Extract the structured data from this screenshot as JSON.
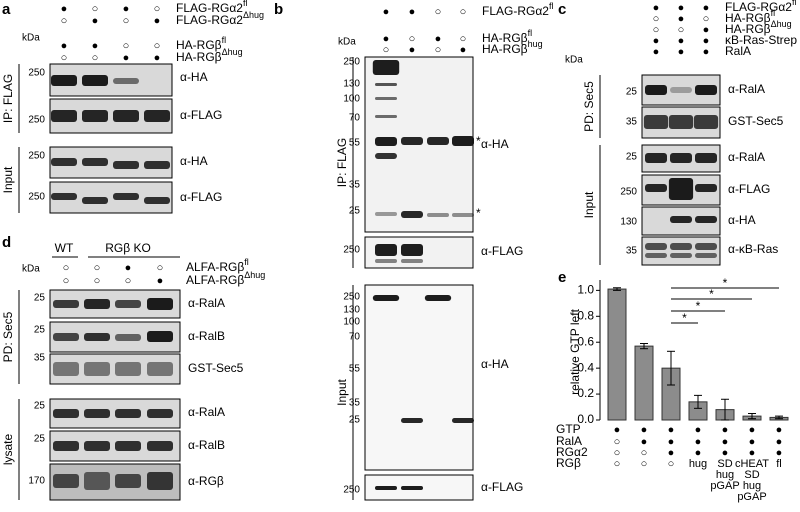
{
  "panel_a": {
    "letter": "a",
    "kda": "kDa",
    "conditions": [
      {
        "label": "FLAG-RGα2",
        "sup": "fl",
        "marks": [
          "●",
          "○",
          "●",
          "○"
        ]
      },
      {
        "label": "FLAG-RGα2",
        "sup": "Δhug",
        "marks": [
          "○",
          "●",
          "○",
          "●"
        ]
      },
      {
        "label": "HA-RGβ",
        "sup": "fl",
        "marks": [
          "●",
          "●",
          "○",
          "○"
        ]
      },
      {
        "label": "HA-RGβ",
        "sup": "Δhug",
        "marks": [
          "○",
          "○",
          "●",
          "●"
        ]
      }
    ],
    "groups": [
      {
        "label": "IP: FLAG",
        "blots": [
          {
            "markers": [
              250
            ],
            "antibody": "α-HA"
          },
          {
            "markers": [
              250
            ],
            "antibody": "α-FLAG"
          }
        ]
      },
      {
        "label": "Input",
        "blots": [
          {
            "markers": [
              250
            ],
            "antibody": "α-HA"
          },
          {
            "markers": [
              250
            ],
            "antibody": "α-FLAG"
          }
        ]
      }
    ]
  },
  "panel_b": {
    "letter": "b",
    "kda": "kDa",
    "conditions": [
      {
        "label": "FLAG-RGα2",
        "sup": "fl",
        "marks": [
          "●",
          "●",
          "○",
          "○"
        ]
      },
      {
        "label": "HA-RGβ",
        "sup": "fl",
        "marks": [
          "●",
          "○",
          "●",
          "○"
        ]
      },
      {
        "label": "HA-RGβ",
        "sup": "hug",
        "marks": [
          "○",
          "●",
          "○",
          "●"
        ]
      }
    ],
    "groups": [
      {
        "label": "IP: FLAG",
        "blots": [
          {
            "markers": [
              250,
              130,
              100,
              70,
              55,
              35,
              25
            ],
            "antibody": "α-HA"
          },
          {
            "markers": [
              250
            ],
            "antibody": "α-FLAG"
          }
        ]
      },
      {
        "label": "Input",
        "blots": [
          {
            "markers": [
              250,
              130,
              100,
              70,
              55,
              35,
              25
            ],
            "antibody": "α-HA"
          },
          {
            "markers": [
              250
            ],
            "antibody": "α-FLAG"
          }
        ]
      }
    ],
    "asterisks": [
      "*",
      "*"
    ]
  },
  "panel_c": {
    "letter": "c",
    "kda": "kDa",
    "conditions": [
      {
        "label": "FLAG-RGα2",
        "sup": "fl",
        "marks": [
          "●",
          "●",
          "●"
        ]
      },
      {
        "label": "HA-RGβ",
        "sup": "fl",
        "marks": [
          "○",
          "●",
          "○"
        ]
      },
      {
        "label": "HA-RGβ",
        "sup": "Δhug",
        "marks": [
          "○",
          "○",
          "●"
        ]
      },
      {
        "label": "κB-Ras-Strep",
        "marks": [
          "●",
          "●",
          "●"
        ]
      },
      {
        "label": "RalA",
        "marks": [
          "●",
          "●",
          "●"
        ]
      }
    ],
    "groups": [
      {
        "label": "PD: Sec5",
        "blots": [
          {
            "markers": [
              25
            ],
            "antibody": "α-RalA"
          },
          {
            "markers": [
              35
            ],
            "antibody": "GST-Sec5"
          }
        ]
      },
      {
        "label": "Input",
        "blots": [
          {
            "markers": [
              25
            ],
            "antibody": "α-RalA"
          },
          {
            "markers": [
              250
            ],
            "antibody": "α-FLAG"
          },
          {
            "markers": [
              130
            ],
            "antibody": "α-HA"
          },
          {
            "markers": [
              35
            ],
            "antibody": "α-κB-Ras"
          }
        ]
      }
    ]
  },
  "panel_d": {
    "letter": "d",
    "kda": "kDa",
    "genotypes": [
      "WT",
      "RGβ KO"
    ],
    "conditions": [
      {
        "label": "ALFA-RGβ",
        "sup": "fl",
        "marks": [
          "○",
          "○",
          "●",
          "○"
        ]
      },
      {
        "label": "ALFA-RGβ",
        "sup": "Δhug",
        "marks": [
          "○",
          "○",
          "○",
          "●"
        ]
      }
    ],
    "groups": [
      {
        "label": "PD: Sec5",
        "blots": [
          {
            "markers": [
              25
            ],
            "antibody": "α-RalA"
          },
          {
            "markers": [
              25
            ],
            "antibody": "α-RalB"
          },
          {
            "markers": [
              35
            ],
            "antibody": "GST-Sec5"
          }
        ]
      },
      {
        "label": "lysate",
        "blots": [
          {
            "markers": [
              25
            ],
            "antibody": "α-RalA"
          },
          {
            "markers": [
              25
            ],
            "antibody": "α-RalB"
          },
          {
            "markers": [
              170
            ],
            "antibody": "α-RGβ"
          }
        ]
      }
    ]
  },
  "panel_e": {
    "letter": "e",
    "significance": [
      "*",
      "*",
      "*",
      "*"
    ],
    "conditions": [
      {
        "label": "GTP",
        "cells": [
          [
            "●"
          ],
          [
            "●"
          ],
          [
            "●"
          ],
          [
            "●"
          ],
          [
            "●"
          ],
          [
            "●"
          ],
          [
            "●"
          ]
        ]
      },
      {
        "label": "RalA",
        "cells": [
          [
            "○"
          ],
          [
            "●"
          ],
          [
            "●"
          ],
          [
            "●"
          ],
          [
            "●"
          ],
          [
            "●"
          ],
          [
            "●"
          ]
        ]
      },
      {
        "label": "RGα2",
        "cells": [
          [
            "○"
          ],
          [
            "○"
          ],
          [
            "●"
          ],
          [
            "●"
          ],
          [
            "●"
          ],
          [
            "●"
          ],
          [
            "●"
          ]
        ]
      },
      {
        "label": "RGβ",
        "cells": [
          [
            "○"
          ],
          [
            "○"
          ],
          [
            "○"
          ],
          [
            "hug"
          ],
          [
            "SD",
            "hug",
            "pGAP"
          ],
          [
            "cHEAT",
            "SD",
            "hug",
            "pGAP"
          ],
          [
            "fl"
          ]
        ]
      }
    ]
  },
  "chart_data": {
    "type": "bar",
    "ylabel": "relative GTP left",
    "values": [
      1.01,
      0.57,
      0.4,
      0.14,
      0.08,
      0.03,
      0.02
    ],
    "errors": [
      0.01,
      0.02,
      0.13,
      0.05,
      0.08,
      0.02,
      0.01
    ],
    "color": "#8c8c8c",
    "ylim": [
      0,
      1.08
    ],
    "yticks": [
      {
        "value": 0,
        "label": "0.0"
      },
      0.2,
      0.4,
      0.6,
      0.8,
      {
        "value": 1,
        "label": "1.0"
      }
    ]
  }
}
